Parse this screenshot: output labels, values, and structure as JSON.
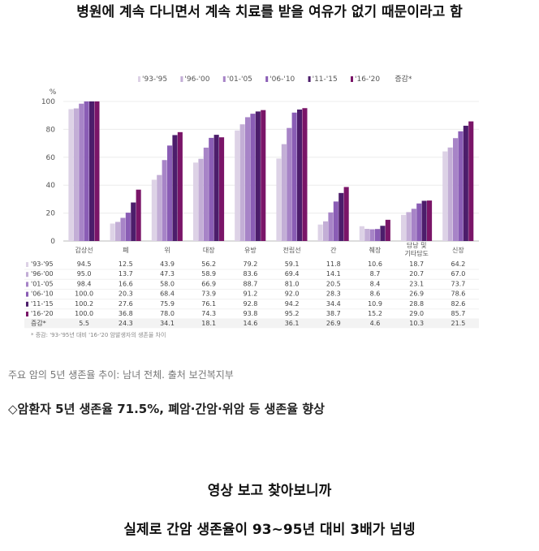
{
  "texts": {
    "top_line": "병원에 계속 다니면서 계속 치료를 받을 여유가 없기 때문이라고 함",
    "caption": "주요 암의 5년 생존율 추이: 남녀 전체. 출처 보건복지부",
    "headline": "◇암환자 5년 생존율 71.5%, 폐암·간암·위암 등 생존율 향상",
    "line1": "영상 보고 찾아보니까",
    "line2": "실제로 간암 생존율이 93~95년 대비 3배가 넘넹"
  },
  "chart_data": {
    "type": "bar",
    "ylabel": "%",
    "ylim": [
      0,
      100
    ],
    "yticks": [
      0,
      20,
      40,
      60,
      80,
      100
    ],
    "categories": [
      "갑상선",
      "폐",
      "위",
      "대장",
      "유방",
      "전립선",
      "간",
      "췌장",
      "담낭 및 기타담도",
      "신장"
    ],
    "series": [
      {
        "name": "'93-'95",
        "color": "#ddd2e6",
        "values": [
          94.5,
          12.5,
          43.9,
          56.2,
          79.2,
          59.1,
          11.8,
          10.6,
          18.7,
          64.2
        ]
      },
      {
        "name": "'96-'00",
        "color": "#c3aed6",
        "values": [
          95.0,
          13.7,
          47.3,
          58.9,
          83.6,
          69.4,
          14.1,
          8.7,
          20.7,
          67.0
        ]
      },
      {
        "name": "'01-'05",
        "color": "#a784c7",
        "values": [
          98.4,
          16.6,
          58.0,
          66.9,
          88.7,
          81.0,
          20.5,
          8.4,
          23.1,
          73.7
        ]
      },
      {
        "name": "'06-'10",
        "color": "#8a5db5",
        "values": [
          100.0,
          20.3,
          68.4,
          73.9,
          91.2,
          92.0,
          28.3,
          8.6,
          26.9,
          78.6
        ]
      },
      {
        "name": "'11-'15",
        "color": "#4c1d6b",
        "values": [
          100.2,
          27.6,
          75.9,
          76.1,
          92.8,
          94.2,
          34.4,
          10.9,
          28.8,
          82.6
        ]
      },
      {
        "name": "'16-'20",
        "color": "#7a1568",
        "values": [
          100.0,
          36.8,
          78.0,
          74.3,
          93.8,
          95.2,
          38.7,
          15.2,
          29.0,
          85.7
        ]
      }
    ],
    "extra_legend": "증감*",
    "increase_label": "증감*",
    "increase": [
      5.5,
      24.3,
      34.1,
      18.1,
      14.6,
      36.1,
      26.9,
      4.6,
      10.3,
      21.5
    ],
    "footnote": "* 증감: '93-'95년 대비 '16-'20 암발생자의 생존율 차이",
    "grid": true,
    "legend": "top"
  }
}
